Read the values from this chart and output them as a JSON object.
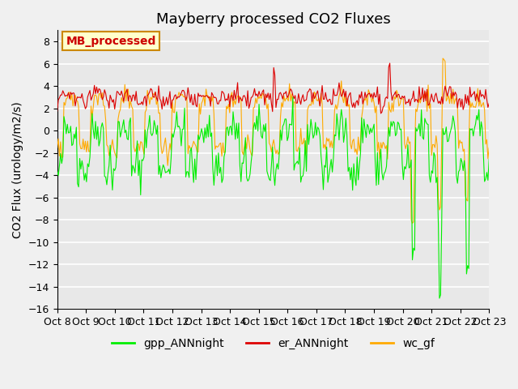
{
  "title": "Mayberry processed CO2 Fluxes",
  "ylabel": "CO2 Flux (urology/m2/s)",
  "xlim": [
    0,
    360
  ],
  "ylim": [
    -16,
    9
  ],
  "yticks": [
    -16,
    -14,
    -12,
    -10,
    -8,
    -6,
    -4,
    -2,
    0,
    2,
    4,
    6,
    8
  ],
  "xtick_labels": [
    "Oct 8",
    "Oct 9",
    "Oct 10",
    "Oct 11",
    "Oct 12",
    "Oct 13",
    "Oct 14",
    "Oct 15",
    "Oct 16",
    "Oct 17",
    "Oct 18",
    "Oct 19",
    "Oct 20",
    "Oct 21",
    "Oct 22",
    "Oct 23"
  ],
  "xtick_positions": [
    0,
    24,
    48,
    72,
    96,
    120,
    144,
    168,
    192,
    216,
    240,
    264,
    288,
    312,
    336,
    360
  ],
  "legend_label": "MB_processed",
  "legend_bg": "#ffffcc",
  "legend_edge": "#cc8800",
  "legend_text_color": "#cc0000",
  "line_gpp_color": "#00ee00",
  "line_er_color": "#dd0000",
  "line_wc_color": "#ffaa00",
  "background_color": "#e8e8e8",
  "grid_color": "#ffffff",
  "title_fontsize": 13,
  "axis_fontsize": 10,
  "tick_fontsize": 9,
  "legend_fontsize": 10
}
